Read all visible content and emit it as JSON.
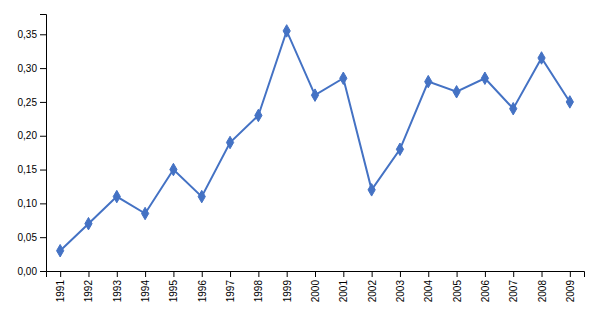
{
  "chart_data": {
    "type": "line",
    "x": [
      1991,
      1992,
      1993,
      1994,
      1995,
      1996,
      1997,
      1998,
      1999,
      2000,
      2001,
      2002,
      2003,
      2004,
      2005,
      2006,
      2007,
      2008,
      2009
    ],
    "values": [
      0.03,
      0.07,
      0.11,
      0.085,
      0.15,
      0.11,
      0.19,
      0.23,
      0.355,
      0.26,
      0.285,
      0.12,
      0.18,
      0.28,
      0.265,
      0.285,
      0.24,
      0.315,
      0.25
    ],
    "color": "#4472C4",
    "marker": "diamond",
    "xlim": [
      1990.5,
      2009.5
    ],
    "ylim": [
      0.0,
      0.38
    ],
    "xticks": [
      1991,
      1992,
      1993,
      1994,
      1995,
      1996,
      1997,
      1998,
      1999,
      2000,
      2001,
      2002,
      2003,
      2004,
      2005,
      2006,
      2007,
      2008,
      2009
    ],
    "yticks": [
      {
        "value": 0.0,
        "label": "0,00"
      },
      {
        "value": 0.05,
        "label": "0,05"
      },
      {
        "value": 0.1,
        "label": "0,10"
      },
      {
        "value": 0.15,
        "label": "0,15"
      },
      {
        "value": 0.2,
        "label": "0,20"
      },
      {
        "value": 0.25,
        "label": "0,25"
      },
      {
        "value": 0.3,
        "label": "0,30"
      },
      {
        "value": 0.35,
        "label": "0,35"
      }
    ],
    "grid": false
  }
}
